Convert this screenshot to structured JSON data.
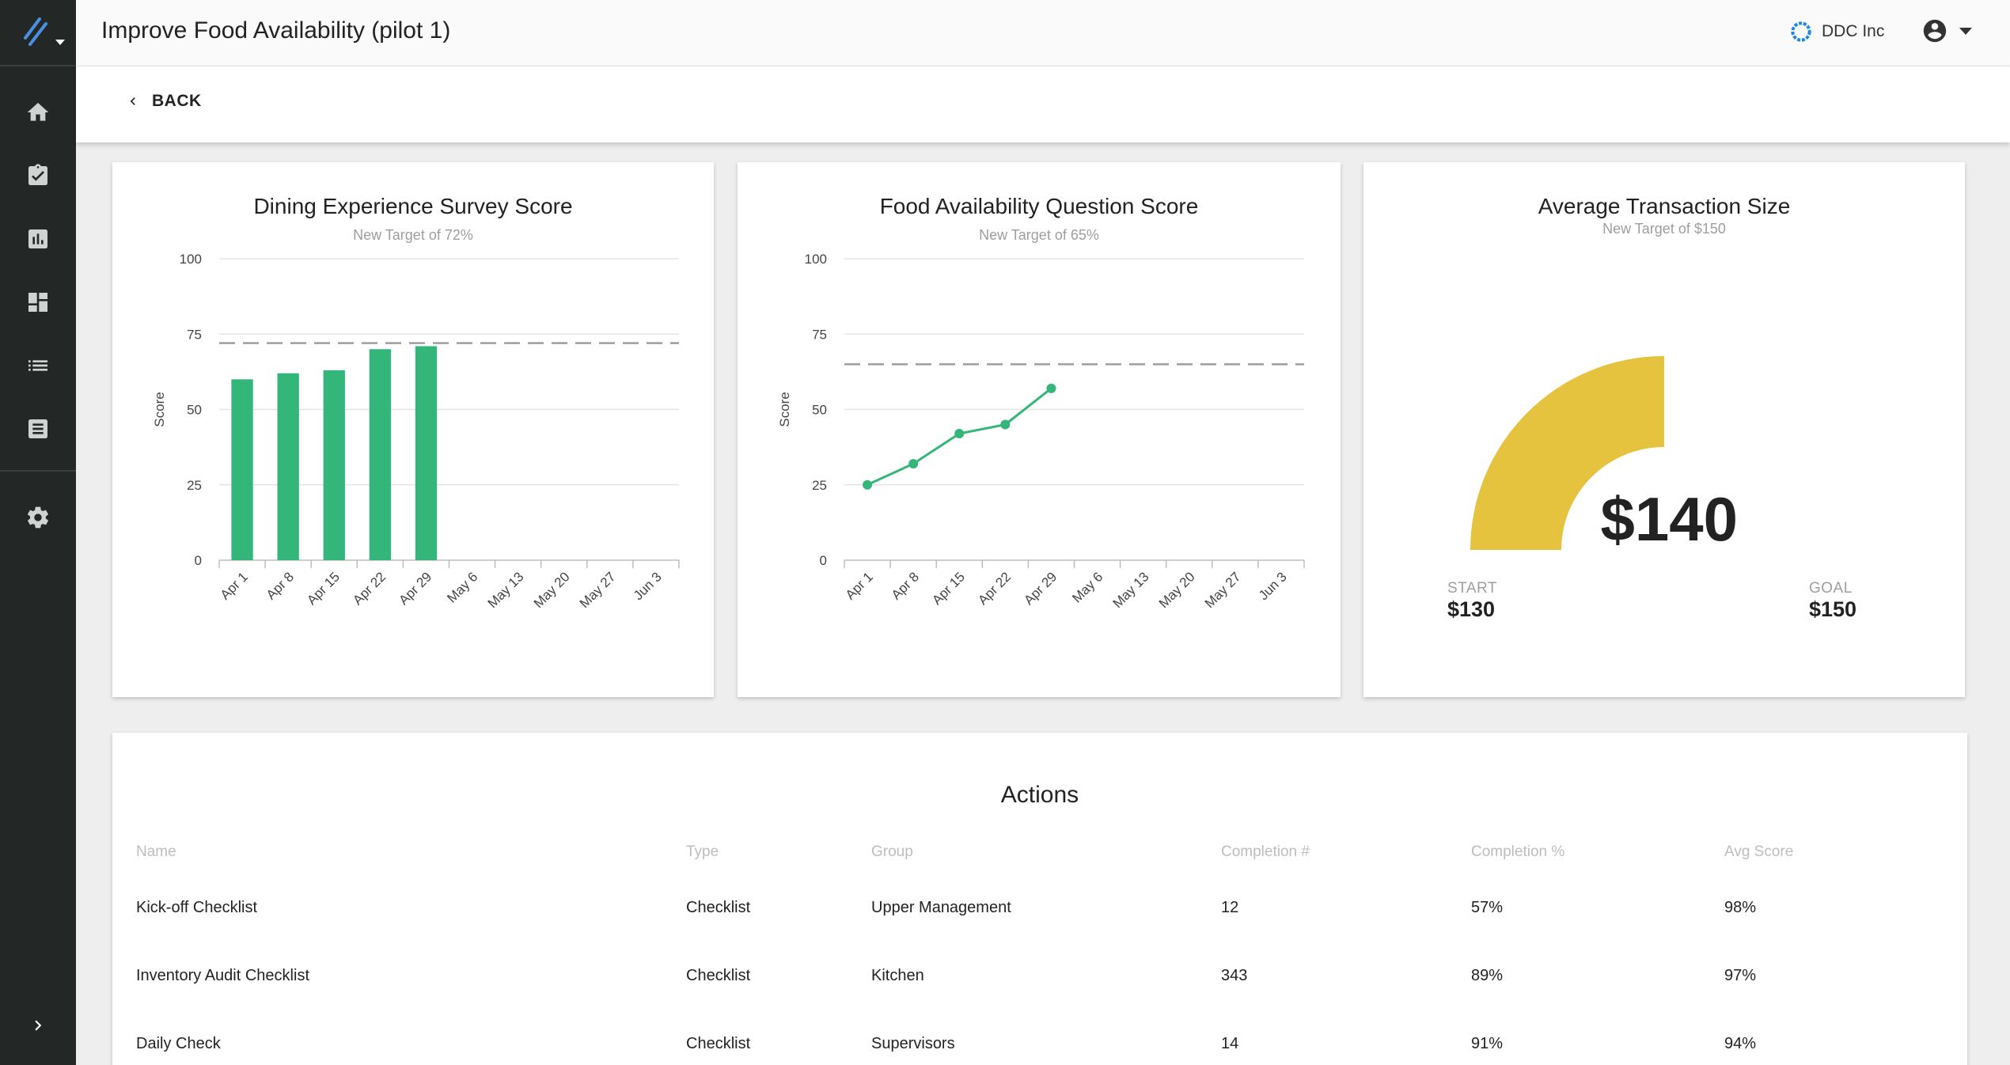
{
  "window": {
    "title": "Improve Food Availability (pilot 1)"
  },
  "header": {
    "org_name": "DDC Inc",
    "brand_color": "#1e88e5"
  },
  "backbar": {
    "back_label": "BACK"
  },
  "sidebar": {
    "items": [
      {
        "icon": "home-icon"
      },
      {
        "icon": "clipboard-check-icon"
      },
      {
        "icon": "bar-chart-icon"
      },
      {
        "icon": "dashboard-icon"
      },
      {
        "icon": "list-icon"
      },
      {
        "icon": "receipt-icon"
      },
      {
        "icon": "gear-icon"
      }
    ],
    "expand_icon": "chevron-right-icon"
  },
  "chart_data": [
    {
      "type": "bar",
      "title": "Dining Experience Survey Score",
      "subtitle": "New Target of 72%",
      "ylabel": "Score",
      "ylim": [
        0,
        100
      ],
      "yticks": [
        0,
        25,
        50,
        75,
        100
      ],
      "categories": [
        "Apr 1",
        "Apr 8",
        "Apr 15",
        "Apr 22",
        "Apr 29",
        "May 6",
        "May 13",
        "May 20",
        "May 27",
        "Jun 3"
      ],
      "values": [
        60,
        62,
        63,
        70,
        71,
        null,
        null,
        null,
        null,
        null
      ],
      "target": 72,
      "color": "#34b57a",
      "grid": true
    },
    {
      "type": "line",
      "title": "Food Availability Question Score",
      "subtitle": "New Target of 65%",
      "ylabel": "Score",
      "ylim": [
        0,
        100
      ],
      "yticks": [
        0,
        25,
        50,
        75,
        100
      ],
      "categories": [
        "Apr 1",
        "Apr 8",
        "Apr 15",
        "Apr 22",
        "Apr 29",
        "May 6",
        "May 13",
        "May 20",
        "May 27",
        "Jun 3"
      ],
      "values": [
        25,
        32,
        42,
        45,
        57,
        null,
        null,
        null,
        null,
        null
      ],
      "target": 65,
      "color": "#34b57a",
      "grid": true
    }
  ],
  "gauge": {
    "title": "Average Transaction Size",
    "subtitle": "New Target of $150",
    "value_label": "$140",
    "start_caption": "START",
    "start_value": "$130",
    "goal_caption": "GOAL",
    "goal_value": "$150",
    "start": 130,
    "goal": 150,
    "value": 140,
    "color": "#e5c33f"
  },
  "actions": {
    "title": "Actions",
    "columns": [
      "Name",
      "Type",
      "Group",
      "Completion #",
      "Completion %",
      "Avg Score"
    ],
    "rows": [
      [
        "Kick-off Checklist",
        "Checklist",
        "Upper Management",
        "12",
        "57%",
        "98%"
      ],
      [
        "Inventory Audit Checklist",
        "Checklist",
        "Kitchen",
        "343",
        "89%",
        "97%"
      ],
      [
        "Daily Check",
        "Checklist",
        "Supervisors",
        "14",
        "91%",
        "94%"
      ]
    ]
  }
}
